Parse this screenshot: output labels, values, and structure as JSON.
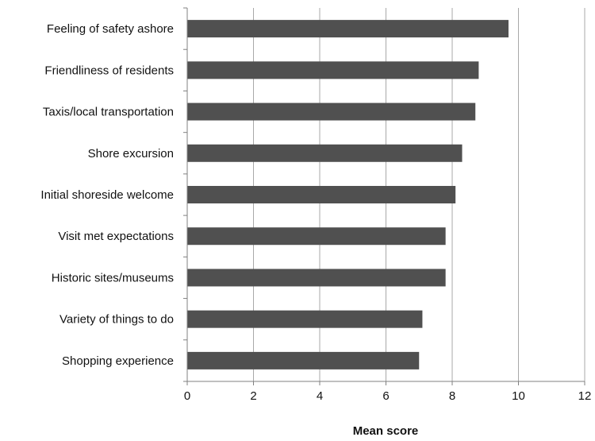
{
  "chart_data": {
    "type": "bar",
    "orientation": "horizontal",
    "title": "",
    "xlabel": "Mean score",
    "ylabel": "",
    "categories": [
      "Feeling of safety ashore",
      "Friendliness of residents",
      "Taxis/local transportation",
      "Shore excursion",
      "Initial shoreside welcome",
      "Visit met expectations",
      "Historic sites/museums",
      "Variety of things to do",
      "Shopping experience"
    ],
    "values": [
      9.7,
      8.8,
      8.7,
      8.3,
      8.1,
      7.8,
      7.8,
      7.1,
      7.0
    ],
    "xlim": [
      0,
      12
    ],
    "xticks": [
      "0",
      "2",
      "4",
      "6",
      "8",
      "10",
      "12"
    ],
    "grid": "vertical",
    "legend": "none",
    "colors": {
      "bar": "#505050",
      "grid": "#a8a8a8",
      "axis": "#808080"
    }
  }
}
